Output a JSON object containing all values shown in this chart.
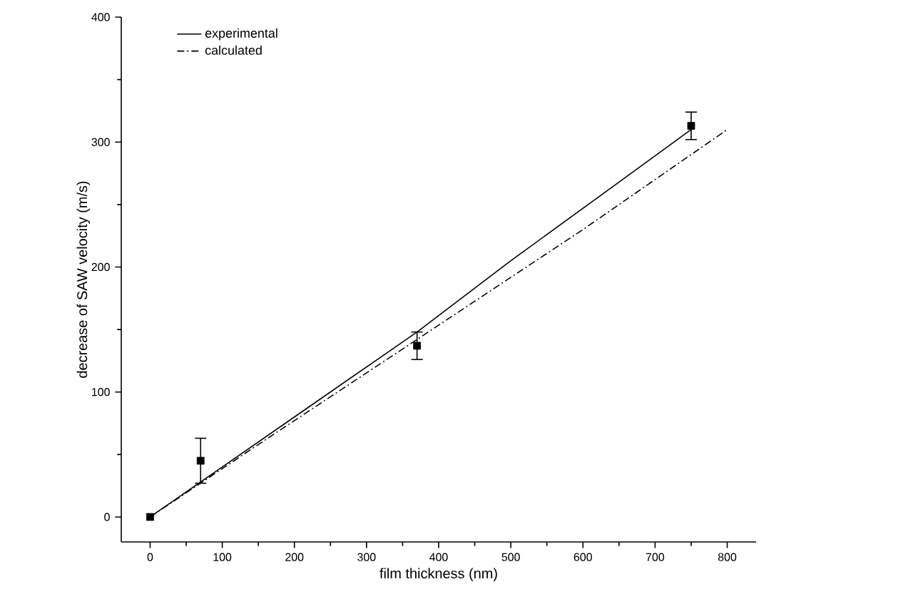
{
  "chart_data": {
    "type": "line",
    "xlabel": "film thickness (nm)",
    "ylabel": "decrease of SAW velocity (m/s)",
    "xlim": [
      -40,
      840
    ],
    "ylim": [
      -20,
      400
    ],
    "xticks": [
      0,
      100,
      200,
      300,
      400,
      500,
      600,
      700,
      800
    ],
    "yticks": [
      0,
      100,
      200,
      300,
      400
    ],
    "legend": "top left",
    "grid": false,
    "series": [
      {
        "name": "experimental",
        "line_style": "solid",
        "color": "#000000",
        "x": [
          0,
          100,
          200,
          370,
          500,
          650,
          750
        ],
        "values": [
          0,
          40,
          80,
          148,
          205,
          268,
          310
        ]
      },
      {
        "name": "calculated",
        "line_style": "dashdot",
        "color": "#000000",
        "x": [
          0,
          150,
          370,
          600,
          800
        ],
        "values": [
          0,
          58,
          142,
          230,
          310
        ]
      },
      {
        "type": "scatter",
        "marker": "square",
        "color": "#000000",
        "x": [
          0,
          70,
          370,
          750
        ],
        "values": [
          0,
          45,
          137,
          313
        ],
        "errors": [
          null,
          18,
          11,
          11
        ]
      }
    ]
  }
}
